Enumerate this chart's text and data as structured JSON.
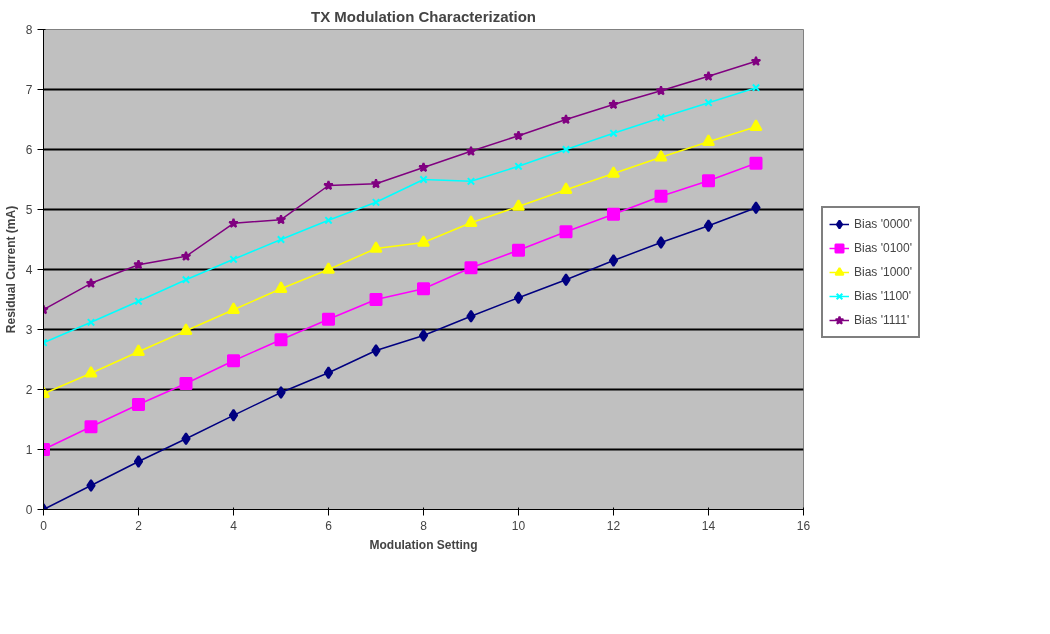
{
  "chart_data": {
    "type": "line",
    "title": "TX Modulation Characterization",
    "xlabel": "Modulation Setting",
    "ylabel": "Residual Current (mA)",
    "x": [
      0,
      1,
      2,
      3,
      4,
      5,
      6,
      7,
      8,
      9,
      10,
      11,
      12,
      13,
      14,
      15
    ],
    "xlim": [
      0,
      16
    ],
    "xticks": [
      0,
      2,
      4,
      6,
      8,
      10,
      12,
      14,
      16
    ],
    "ylim": [
      0,
      8
    ],
    "yticks": [
      0,
      1,
      2,
      3,
      4,
      5,
      6,
      7,
      8
    ],
    "grid": "y",
    "legend": "right",
    "series": [
      {
        "name": "Bias '0000'",
        "color": "#000080",
        "marker": "diamond",
        "values": [
          0,
          0.4,
          0.8,
          1.18,
          1.57,
          1.95,
          2.28,
          2.65,
          2.9,
          3.22,
          3.53,
          3.83,
          4.15,
          4.45,
          4.73,
          5.03
        ]
      },
      {
        "name": "Bias '0100'",
        "color": "#ff00ff",
        "marker": "square",
        "values": [
          1.0,
          1.38,
          1.75,
          2.1,
          2.48,
          2.83,
          3.17,
          3.5,
          3.68,
          4.03,
          4.32,
          4.63,
          4.92,
          5.22,
          5.48,
          5.77
        ]
      },
      {
        "name": "Bias '1000'",
        "color": "#ffff00",
        "marker": "triangle",
        "values": [
          1.93,
          2.27,
          2.63,
          2.98,
          3.33,
          3.68,
          4.0,
          4.35,
          4.45,
          4.78,
          5.05,
          5.33,
          5.6,
          5.87,
          6.13,
          6.38
        ]
      },
      {
        "name": "Bias '1100'",
        "color": "#00ffff",
        "marker": "cross",
        "values": [
          2.78,
          3.12,
          3.47,
          3.83,
          4.17,
          4.5,
          4.82,
          5.12,
          5.5,
          5.47,
          5.72,
          6.0,
          6.27,
          6.53,
          6.78,
          7.03
        ]
      },
      {
        "name": "Bias '1111'",
        "color": "#800080",
        "marker": "star",
        "values": [
          3.33,
          3.77,
          4.08,
          4.22,
          4.77,
          4.83,
          5.4,
          5.43,
          5.7,
          5.97,
          6.23,
          6.5,
          6.75,
          6.98,
          7.22,
          7.47
        ]
      }
    ]
  }
}
